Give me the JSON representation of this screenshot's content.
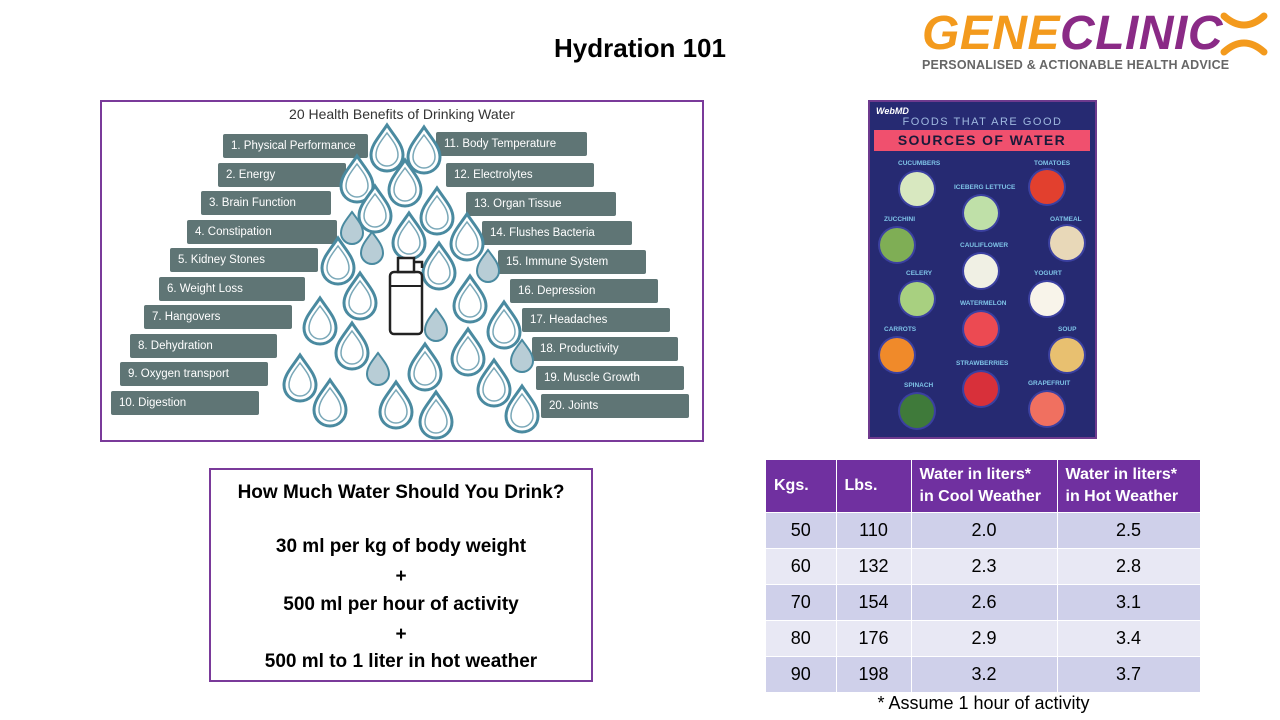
{
  "slide": {
    "title": "Hydration 101"
  },
  "logo": {
    "word_gene": "GENE",
    "word_clinic": "CLINIC",
    "tagline": "PERSONALISED & ACTIONABLE HEALTH ADVICE",
    "icon": "x-mark-icon",
    "colors": {
      "gene": "#f39a1d",
      "clinic": "#8a2a86"
    }
  },
  "benefits": {
    "title": "20 Health Benefits of Drinking Water",
    "left": [
      "1. Physical Performance",
      "2. Energy",
      "3. Brain Function",
      "4. Constipation",
      "5. Kidney Stones",
      "6. Weight Loss",
      "7. Hangovers",
      "8. Dehydration",
      "9. Oxygen transport",
      "10. Digestion"
    ],
    "right": [
      "11. Body Temperature",
      "12. Electrolytes",
      "13. Organ Tissue",
      "14. Flushes Bacteria",
      "15. Immune System",
      "16. Depression",
      "17. Headaches",
      "18. Productivity",
      "19. Muscle Growth",
      "20. Joints"
    ],
    "colors": {
      "pill": "#5f7575",
      "drop": "#4a8aa0"
    }
  },
  "poster": {
    "brand": "WebMD",
    "heading_small": "FOODS THAT ARE GOOD",
    "heading_big": "SOURCES OF WATER",
    "foods": [
      "CUCUMBERS",
      "TOMATOES",
      "ICEBERG LETTUCE",
      "ZUCCHINI",
      "OATMEAL",
      "CAULIFLOWER",
      "CELERY",
      "YOGURT",
      "WATERMELON",
      "CARROTS",
      "SOUP",
      "STRAWBERRIES",
      "SPINACH",
      "GRAPEFRUIT"
    ]
  },
  "formula": {
    "heading": "How Much Water Should You Drink?",
    "line1": "30 ml per kg of body weight",
    "plus1": "+",
    "line2": "500 ml per hour of activity",
    "plus2": "+",
    "line3": "500 ml to 1 liter in hot weather"
  },
  "table": {
    "headers": [
      "Kgs.",
      "Lbs.",
      "Water in liters* in Cool Weather",
      "Water in liters* in Hot Weather"
    ],
    "rows": [
      [
        "50",
        "110",
        "2.0",
        "2.5"
      ],
      [
        "60",
        "132",
        "2.3",
        "2.8"
      ],
      [
        "70",
        "154",
        "2.6",
        "3.1"
      ],
      [
        "80",
        "176",
        "2.9",
        "3.4"
      ],
      [
        "90",
        "198",
        "3.2",
        "3.7"
      ]
    ],
    "footnote": "* Assume 1 hour of activity",
    "colors": {
      "header": "#7030a0",
      "row_dark": "#cfd0ea",
      "row_light": "#e8e8f4"
    }
  }
}
